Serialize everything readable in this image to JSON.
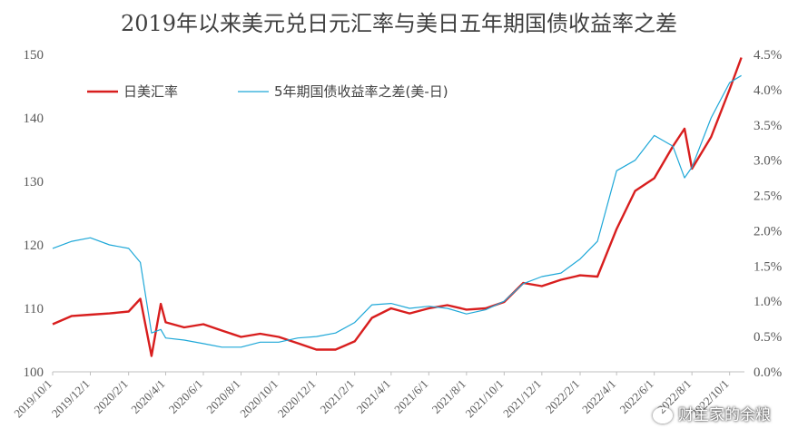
{
  "chart_data": {
    "type": "line",
    "title": "2019年以来美元兑日元汇率与美日五年期国债收益率之差",
    "left_axis": {
      "ylim": [
        100,
        150
      ],
      "ticks": [
        "100",
        "110",
        "120",
        "130",
        "140",
        "150"
      ]
    },
    "right_axis": {
      "ylim": [
        0.0,
        4.5
      ],
      "ticks": [
        "0.0%",
        "0.5%",
        "1.0%",
        "1.5%",
        "2.0%",
        "2.5%",
        "3.0%",
        "3.5%",
        "4.0%",
        "4.5%"
      ]
    },
    "x_tick_labels": [
      "2019/10/1",
      "2019/12/1",
      "2020/2/1",
      "2020/4/1",
      "2020/6/1",
      "2020/8/1",
      "2020/10/1",
      "2020/12/1",
      "2021/2/1",
      "2021/4/1",
      "2021/6/1",
      "2021/8/1",
      "2021/10/1",
      "2021/12/1",
      "2022/2/1",
      "2022/4/1",
      "2022/6/1",
      "2022/8/1",
      "2022/10/1"
    ],
    "legend_position": "top-left",
    "series": [
      {
        "name": "日美汇率",
        "axis": "left",
        "color": "#d81e1e",
        "x": [
          "2019/10/1",
          "2019/11/1",
          "2019/12/1",
          "2020/1/1",
          "2020/2/1",
          "2020/2/20",
          "2020/3/9",
          "2020/3/24",
          "2020/4/1",
          "2020/5/1",
          "2020/6/1",
          "2020/7/1",
          "2020/8/1",
          "2020/9/1",
          "2020/10/1",
          "2020/11/1",
          "2020/12/1",
          "2021/1/1",
          "2021/2/1",
          "2021/3/1",
          "2021/4/1",
          "2021/5/1",
          "2021/6/1",
          "2021/7/1",
          "2021/8/1",
          "2021/9/1",
          "2021/10/1",
          "2021/11/1",
          "2021/12/1",
          "2022/1/1",
          "2022/2/1",
          "2022/3/1",
          "2022/4/1",
          "2022/5/1",
          "2022/6/1",
          "2022/7/1",
          "2022/7/20",
          "2022/8/1",
          "2022/9/1",
          "2022/10/1",
          "2022/10/20"
        ],
        "values": [
          107.5,
          108.8,
          109.0,
          109.2,
          109.5,
          111.5,
          102.5,
          110.7,
          107.8,
          107.0,
          107.5,
          106.5,
          105.5,
          106.0,
          105.5,
          104.5,
          103.5,
          103.5,
          104.8,
          108.5,
          110.0,
          109.2,
          110.0,
          110.5,
          109.8,
          110.0,
          111.0,
          114.0,
          113.5,
          114.5,
          115.2,
          115.0,
          122.5,
          128.5,
          130.5,
          135.5,
          138.3,
          132.0,
          137.0,
          144.5,
          149.5
        ]
      },
      {
        "name": "5年期国债收益率之差(美-日)",
        "axis": "right",
        "color": "#1fa8d8",
        "x": [
          "2019/10/1",
          "2019/11/1",
          "2019/12/1",
          "2020/1/1",
          "2020/2/1",
          "2020/2/20",
          "2020/3/9",
          "2020/3/24",
          "2020/4/1",
          "2020/5/1",
          "2020/6/1",
          "2020/7/1",
          "2020/8/1",
          "2020/9/1",
          "2020/10/1",
          "2020/11/1",
          "2020/12/1",
          "2021/1/1",
          "2021/2/1",
          "2021/3/1",
          "2021/4/1",
          "2021/5/1",
          "2021/6/1",
          "2021/7/1",
          "2021/8/1",
          "2021/9/1",
          "2021/10/1",
          "2021/11/1",
          "2021/12/1",
          "2022/1/1",
          "2022/2/1",
          "2022/3/1",
          "2022/4/1",
          "2022/5/1",
          "2022/6/1",
          "2022/7/1",
          "2022/7/20",
          "2022/8/1",
          "2022/9/1",
          "2022/10/1",
          "2022/10/20"
        ],
        "values": [
          1.75,
          1.85,
          1.9,
          1.8,
          1.75,
          1.55,
          0.55,
          0.6,
          0.48,
          0.45,
          0.4,
          0.35,
          0.35,
          0.42,
          0.42,
          0.48,
          0.5,
          0.55,
          0.7,
          0.95,
          0.97,
          0.9,
          0.93,
          0.9,
          0.82,
          0.88,
          1.0,
          1.25,
          1.35,
          1.4,
          1.6,
          1.85,
          2.85,
          3.0,
          3.35,
          3.2,
          2.75,
          2.9,
          3.6,
          4.1,
          4.2
        ]
      }
    ]
  },
  "watermark": "财主家的余粮"
}
